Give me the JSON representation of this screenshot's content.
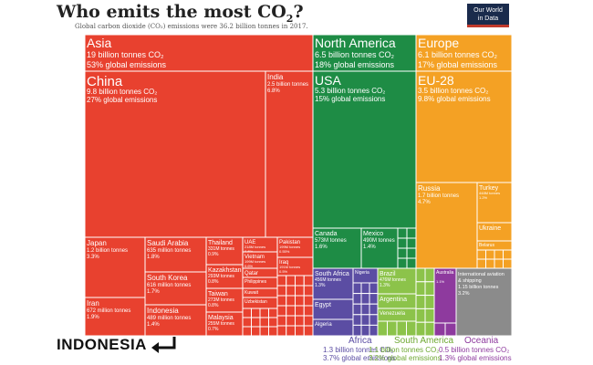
{
  "header": {
    "title": "Who emits the most CO",
    "title_sub": "2",
    "title_end": "?",
    "subtitle": "Global carbon dioxide (CO₂) emissions were 36.2 billion tonnes in 2017."
  },
  "logo": {
    "line1": "Our World",
    "line2": "in Data",
    "bg": "#1a2b4c",
    "accent": "#c0392b"
  },
  "callout": {
    "label": "INDONESIA",
    "icon": "return-arrow-icon"
  },
  "chart_data": {
    "type": "treemap",
    "title": "Who emits the most CO₂?",
    "units": "tonnes CO₂",
    "regions": [
      {
        "name": "Asia",
        "label": "Asia",
        "value": "19 billion tonnes CO₂",
        "share": "53% global emissions",
        "color": "#e8412f",
        "countries": [
          {
            "name": "China",
            "value": "9.8 billion tonnes CO₂",
            "share": "27% global emissions"
          },
          {
            "name": "India",
            "value": "2.5 billion tonnes",
            "share": "6.8%"
          },
          {
            "name": "Japan",
            "value": "1.2 billion tonnes",
            "share": "3.3%"
          },
          {
            "name": "Iran",
            "value": "672 million tonnes",
            "share": "1.9%"
          },
          {
            "name": "Saudi Arabia",
            "value": "635 million tonnes",
            "share": "1.8%"
          },
          {
            "name": "South Korea",
            "value": "616 million tonnes",
            "share": "1.7%"
          },
          {
            "name": "Indonesia",
            "value": "489 million tonnes",
            "share": "1.4%"
          },
          {
            "name": "Thailand",
            "value": "331M tonnes",
            "share": "0.9%"
          },
          {
            "name": "Kazakhstan",
            "value": "293M tonnes",
            "share": "0.8%"
          },
          {
            "name": "Taiwan",
            "value": "273M tonnes",
            "share": "0.8%"
          },
          {
            "name": "Malaysia",
            "value": "255M tonnes",
            "share": "0.7%"
          },
          {
            "name": "UAE",
            "value": "218M tonnes",
            "share": "0.6%"
          },
          {
            "name": "Vietnam",
            "value": "199M tonnes",
            "share": "0.6%"
          },
          {
            "name": "Pakistan",
            "value": "199M tonnes",
            "share": "0.55%"
          },
          {
            "name": "Iraq",
            "value": "191M tonnes",
            "share": "0.5%"
          },
          {
            "name": "Qatar",
            "value": "",
            "share": ""
          },
          {
            "name": "Philippines",
            "value": "",
            "share": ""
          },
          {
            "name": "Kuwait",
            "value": "",
            "share": ""
          },
          {
            "name": "Uzbekistan",
            "value": "",
            "share": ""
          }
        ]
      },
      {
        "name": "North America",
        "label": "North America",
        "value": "6.5 billion tonnes CO₂",
        "share": "18% global emissions",
        "color": "#1e8c45",
        "countries": [
          {
            "name": "USA",
            "value": "5.3 billion tonnes CO₂",
            "share": "15% global emissions"
          },
          {
            "name": "Canada",
            "value": "573M tonnes",
            "share": "1.6%"
          },
          {
            "name": "Mexico",
            "value": "490M tonnes",
            "share": "1.4%"
          }
        ]
      },
      {
        "name": "Europe",
        "label": "Europe",
        "value": "6.1 billion tonnes CO₂",
        "share": "17% global emissions",
        "color": "#f4a124",
        "countries": [
          {
            "name": "EU-28",
            "value": "3.5 billion tonnes CO₂",
            "share": "9.8% global emissions"
          },
          {
            "name": "Russia",
            "value": "1.7 billion tonnes",
            "share": "4.7%"
          },
          {
            "name": "Turkey",
            "value": "448M tonnes",
            "share": "1.2%"
          },
          {
            "name": "Ukraine",
            "value": "",
            "share": ""
          },
          {
            "name": "Belarus",
            "value": "",
            "share": ""
          }
        ]
      },
      {
        "name": "Africa",
        "label": "Africa",
        "value": "1.3 billion tonnes CO₂",
        "share": "3.7% global emissions",
        "color": "#5b4da3",
        "countries": [
          {
            "name": "South Africa",
            "value": "456M tonnes",
            "share": "1.3%"
          },
          {
            "name": "Egypt",
            "value": "",
            "share": ""
          },
          {
            "name": "Algeria",
            "value": "",
            "share": ""
          },
          {
            "name": "Nigeria",
            "value": "",
            "share": ""
          }
        ]
      },
      {
        "name": "South America",
        "label": "South America",
        "value": "1.1 billion tonnes CO₂",
        "share": "3.2% global emissions",
        "color": "#8cc34a",
        "countries": [
          {
            "name": "Brazil",
            "value": "476M tonnes",
            "share": "1.3%"
          },
          {
            "name": "Argentina",
            "value": "",
            "share": ""
          },
          {
            "name": "Venezuela",
            "value": "",
            "share": ""
          }
        ]
      },
      {
        "name": "Oceania",
        "label": "Oceania",
        "value": "0.5 billion tonnes CO₂",
        "share": "1.3% global emissions",
        "color": "#8e3a9e",
        "countries": [
          {
            "name": "Australia",
            "value": "",
            "share": "1.1%"
          }
        ]
      },
      {
        "name": "International aviation & shipping",
        "label": "International aviation & shipping",
        "value": "1.15 billion tonnes",
        "share": "3.2%",
        "color": "#8b8b8b",
        "countries": []
      }
    ]
  }
}
